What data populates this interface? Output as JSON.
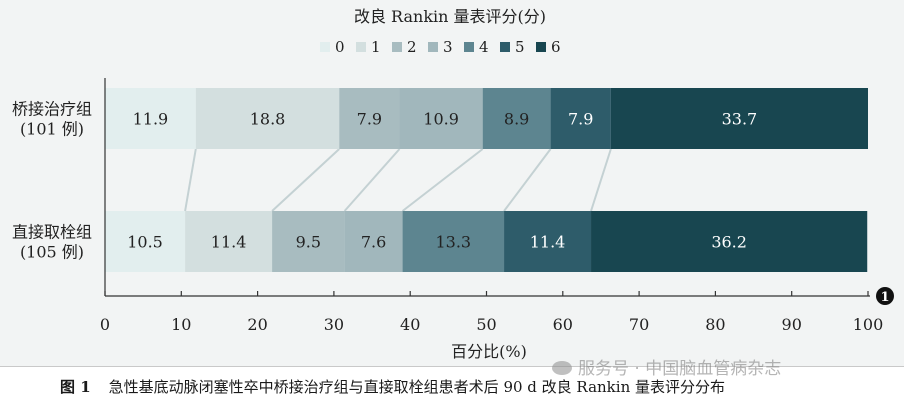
{
  "chart_data": {
    "type": "bar",
    "stacked": true,
    "orientation": "horizontal",
    "title": "改良 Rankin 量表评分(分)",
    "xlabel": "百分比(%)",
    "xlim": [
      0,
      100
    ],
    "xticks": [
      "0",
      "10",
      "20",
      "30",
      "40",
      "50",
      "60",
      "70",
      "80",
      "90",
      "100"
    ],
    "legend": [
      "0",
      "1",
      "2",
      "3",
      "4",
      "5",
      "6"
    ],
    "legend_position": "top",
    "categories": [
      {
        "label": "桥接治疗组",
        "sublabel": "(101 例)"
      },
      {
        "label": "直接取栓组",
        "sublabel": "(105 例)"
      }
    ],
    "series": [
      {
        "name": "0",
        "values": [
          11.9,
          10.5
        ]
      },
      {
        "name": "1",
        "values": [
          18.8,
          11.4
        ]
      },
      {
        "name": "2",
        "values": [
          7.9,
          9.5
        ]
      },
      {
        "name": "3",
        "values": [
          10.9,
          7.6
        ]
      },
      {
        "name": "4",
        "values": [
          8.9,
          13.3
        ]
      },
      {
        "name": "5",
        "values": [
          7.9,
          11.4
        ]
      },
      {
        "name": "6",
        "values": [
          33.7,
          36.2
        ]
      }
    ],
    "value_labels": [
      [
        "11.9",
        "18.8",
        "7.9",
        "10.9",
        "8.9",
        "7.9",
        "33.7"
      ],
      [
        "10.5",
        "11.4",
        "9.5",
        "7.6",
        "13.3",
        "11.4",
        "36.2"
      ]
    ],
    "colors": [
      "#e2eeee",
      "#d3dfdf",
      "#a8bcc0",
      "#a1b7bc",
      "#5d8590",
      "#2e5c6a",
      "#184650"
    ],
    "label_colors": [
      "#222222",
      "#222222",
      "#222222",
      "#222222",
      "#222222",
      "#ffffff",
      "#ffffff"
    ],
    "badge": "1"
  },
  "caption": {
    "figure_label": "图 1",
    "text": "急性基底动脉闭塞性卒中桥接治疗组与直接取栓组患者术后 90 d 改良 Rankin 量表评分分布"
  },
  "watermark": "服务号 · 中国脑血管病杂志"
}
